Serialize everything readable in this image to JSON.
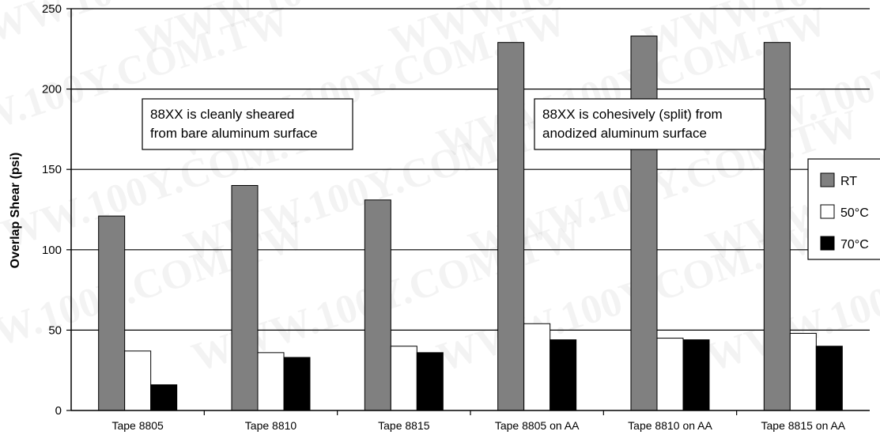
{
  "watermark": "WWW.100Y.COM.TW",
  "chart_data": {
    "type": "bar",
    "ylabel": "Overlap Shear (psi)",
    "xlabel": "",
    "ylim": [
      0,
      250
    ],
    "yticks": [
      0,
      50,
      100,
      150,
      200,
      250
    ],
    "grid": true,
    "legend_position": "right",
    "categories": [
      "Tape 8805",
      "Tape 8810",
      "Tape 8815",
      "Tape 8805 on AA",
      "Tape 8810 on AA",
      "Tape 8815 on AA"
    ],
    "series": [
      {
        "name": "RT",
        "color": "#808080",
        "values": [
          121,
          140,
          131,
          229,
          233,
          229
        ]
      },
      {
        "name": "50°C",
        "color": "#ffffff",
        "values": [
          37,
          36,
          40,
          54,
          45,
          48
        ]
      },
      {
        "name": "70°C",
        "color": "#000000",
        "values": [
          16,
          33,
          36,
          44,
          44,
          40
        ]
      }
    ],
    "annotations": [
      {
        "lines": [
          "88XX is cleanly sheared",
          "from bare aluminum surface"
        ]
      },
      {
        "lines": [
          "88XX is cohesively (split) from",
          "anodized aluminum surface"
        ]
      }
    ]
  }
}
